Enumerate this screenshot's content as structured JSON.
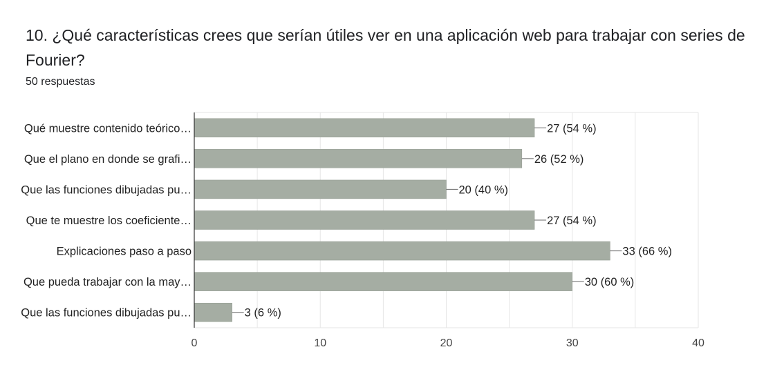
{
  "question": {
    "title": "10.  ¿Qué características crees que serían útiles ver en una aplicación web para trabajar con series de Fourier?",
    "responses": "50 respuestas"
  },
  "colors": {
    "bar": "#a5ada3",
    "bar_stroke": "#8f978d",
    "grid": "#e6e6e6",
    "axis": "#333333"
  },
  "chart_data": {
    "type": "bar",
    "orientation": "horizontal",
    "title": "",
    "xlabel": "",
    "ylabel": "",
    "categories": [
      "Qué muestre contenido teórico…",
      "Que el plano en donde se grafi…",
      "Que las funciones dibujadas pu…",
      "Que te muestre los coeficiente…",
      "Explicaciones paso a paso",
      "Que pueda trabajar con la may…",
      "Que las funciones dibujadas pu…"
    ],
    "values": [
      27,
      26,
      20,
      27,
      33,
      30,
      3
    ],
    "value_labels": [
      "27 (54 %)",
      "26 (52 %)",
      "20 (40 %)",
      "27 (54 %)",
      "33 (66 %)",
      "30 (60 %)",
      "3 (6 %)"
    ],
    "xlim": [
      0,
      40
    ],
    "xticks": [
      0,
      10,
      20,
      30,
      40
    ],
    "grid": true,
    "legend": "none"
  }
}
